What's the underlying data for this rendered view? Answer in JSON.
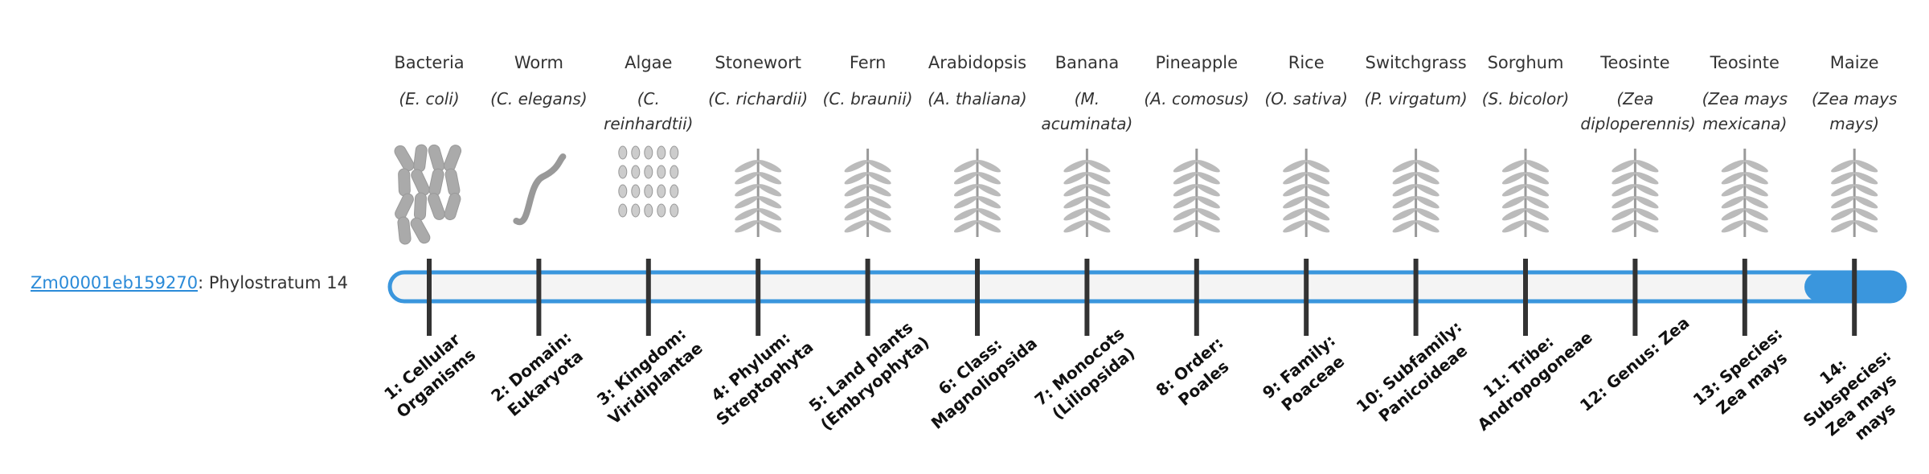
{
  "gene": {
    "id": "Zm00001eb159270",
    "label": ": Phylostratum 14"
  },
  "organisms": [
    {
      "name": "Bacteria",
      "species": "(E. coli)"
    },
    {
      "name": "Worm",
      "species": "(C. elegans)"
    },
    {
      "name": "Algae",
      "species": "(C. reinhardtii)"
    },
    {
      "name": "Stonewort",
      "species": "(C. richardii)"
    },
    {
      "name": "Fern",
      "species": "(C. braunii)"
    },
    {
      "name": "Arabidopsis",
      "species": "(A. thaliana)"
    },
    {
      "name": "Banana",
      "species": "(M. acuminata)"
    },
    {
      "name": "Pineapple",
      "species": "(A. comosus)"
    },
    {
      "name": "Rice",
      "species": "(O. sativa)"
    },
    {
      "name": "Switchgrass",
      "species": "(P. virgatum)"
    },
    {
      "name": "Sorghum",
      "species": "(S. bicolor)"
    },
    {
      "name": "Teosinte",
      "species": "(Zea diploperennis)"
    },
    {
      "name": "Teosinte",
      "species": "(Zea mays mexicana)"
    },
    {
      "name": "Maize",
      "species": "(Zea mays mays)"
    }
  ],
  "strata": [
    "1: Cellular Organisms",
    "2: Domain: Eukaryota",
    "3: Kingdom: Viridiplantae",
    "4: Phylum: Streptophyta",
    "5: Land plants (Embryophyta)",
    "6: Class: Magnoliopsida",
    "7: Monocots (Liliopsida)",
    "8: Order: Poales",
    "9: Family: Poaceae",
    "10: Subfamily: Panicoideae",
    "11: Tribe: Andropogoneae",
    "12: Genus: Zea",
    "13: Species: Zea mays",
    "14: Subspecies: Zea mays mays"
  ]
}
